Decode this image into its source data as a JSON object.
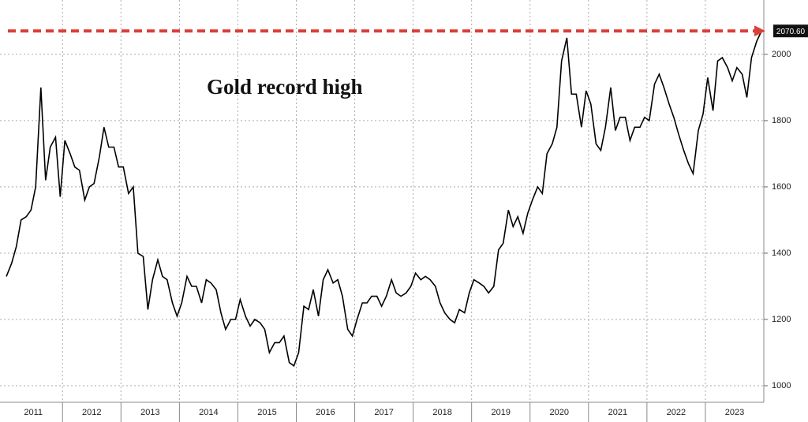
{
  "chart_data": {
    "type": "line",
    "title": "Gold record high",
    "x": [
      2011.04,
      2011.13,
      2011.21,
      2011.29,
      2011.38,
      2011.46,
      2011.54,
      2011.63,
      2011.71,
      2011.79,
      2011.88,
      2011.96,
      2012.04,
      2012.13,
      2012.21,
      2012.29,
      2012.38,
      2012.46,
      2012.54,
      2012.63,
      2012.71,
      2012.79,
      2012.88,
      2012.96,
      2013.04,
      2013.13,
      2013.21,
      2013.29,
      2013.38,
      2013.46,
      2013.54,
      2013.63,
      2013.71,
      2013.79,
      2013.88,
      2013.96,
      2014.04,
      2014.13,
      2014.21,
      2014.29,
      2014.38,
      2014.46,
      2014.54,
      2014.63,
      2014.71,
      2014.79,
      2014.88,
      2014.96,
      2015.04,
      2015.13,
      2015.21,
      2015.29,
      2015.38,
      2015.46,
      2015.54,
      2015.63,
      2015.71,
      2015.79,
      2015.88,
      2015.96,
      2016.04,
      2016.13,
      2016.21,
      2016.29,
      2016.38,
      2016.46,
      2016.54,
      2016.63,
      2016.71,
      2016.79,
      2016.88,
      2016.96,
      2017.04,
      2017.13,
      2017.21,
      2017.29,
      2017.38,
      2017.46,
      2017.54,
      2017.63,
      2017.71,
      2017.79,
      2017.88,
      2017.96,
      2018.04,
      2018.13,
      2018.21,
      2018.29,
      2018.38,
      2018.46,
      2018.54,
      2018.63,
      2018.71,
      2018.79,
      2018.88,
      2018.96,
      2019.04,
      2019.13,
      2019.21,
      2019.29,
      2019.38,
      2019.46,
      2019.54,
      2019.63,
      2019.71,
      2019.79,
      2019.88,
      2019.96,
      2020.04,
      2020.13,
      2020.21,
      2020.29,
      2020.38,
      2020.46,
      2020.54,
      2020.63,
      2020.71,
      2020.79,
      2020.88,
      2020.96,
      2021.04,
      2021.13,
      2021.21,
      2021.29,
      2021.38,
      2021.46,
      2021.54,
      2021.63,
      2021.71,
      2021.79,
      2021.88,
      2021.96,
      2022.04,
      2022.13,
      2022.21,
      2022.29,
      2022.38,
      2022.46,
      2022.54,
      2022.63,
      2022.71,
      2022.79,
      2022.88,
      2022.96,
      2023.04,
      2023.13,
      2023.21,
      2023.29,
      2023.38,
      2023.46,
      2023.54,
      2023.63,
      2023.71,
      2023.79,
      2023.88,
      2023.96
    ],
    "series": [
      {
        "color": "#000000",
        "values": [
          1330,
          1370,
          1420,
          1500,
          1510,
          1530,
          1600,
          1900,
          1620,
          1720,
          1750,
          1570,
          1740,
          1700,
          1660,
          1650,
          1560,
          1600,
          1610,
          1690,
          1780,
          1720,
          1720,
          1660,
          1660,
          1580,
          1600,
          1400,
          1390,
          1230,
          1320,
          1380,
          1330,
          1320,
          1250,
          1210,
          1250,
          1330,
          1300,
          1300,
          1250,
          1320,
          1310,
          1290,
          1220,
          1170,
          1200,
          1200,
          1260,
          1210,
          1180,
          1200,
          1190,
          1170,
          1100,
          1130,
          1130,
          1150,
          1070,
          1060,
          1100,
          1240,
          1230,
          1290,
          1210,
          1320,
          1350,
          1310,
          1320,
          1270,
          1170,
          1150,
          1200,
          1250,
          1250,
          1270,
          1270,
          1240,
          1270,
          1320,
          1280,
          1270,
          1280,
          1300,
          1340,
          1320,
          1330,
          1320,
          1300,
          1250,
          1220,
          1200,
          1190,
          1230,
          1220,
          1280,
          1320,
          1310,
          1300,
          1280,
          1300,
          1410,
          1430,
          1530,
          1480,
          1510,
          1460,
          1520,
          1560,
          1600,
          1580,
          1700,
          1730,
          1780,
          1980,
          2050,
          1880,
          1880,
          1780,
          1890,
          1850,
          1730,
          1710,
          1780,
          1900,
          1770,
          1810,
          1810,
          1740,
          1780,
          1780,
          1810,
          1800,
          1910,
          1940,
          1900,
          1850,
          1810,
          1760,
          1710,
          1670,
          1640,
          1770,
          1820,
          1930,
          1830,
          1980,
          1990,
          1960,
          1920,
          1960,
          1940,
          1870,
          1990,
          2040,
          2070
        ]
      }
    ],
    "xlim": [
      2010.93,
      2024.0
    ],
    "xticks": [
      {
        "value": 2011.5,
        "label": "2011"
      },
      {
        "value": 2012.5,
        "label": "2012"
      },
      {
        "value": 2013.5,
        "label": "2013"
      },
      {
        "value": 2014.5,
        "label": "2014"
      },
      {
        "value": 2015.5,
        "label": "2015"
      },
      {
        "value": 2016.5,
        "label": "2016"
      },
      {
        "value": 2017.5,
        "label": "2017"
      },
      {
        "value": 2018.5,
        "label": "2018"
      },
      {
        "value": 2019.5,
        "label": "2019"
      },
      {
        "value": 2020.5,
        "label": "2020"
      },
      {
        "value": 2021.5,
        "label": "2021"
      },
      {
        "value": 2022.5,
        "label": "2022"
      },
      {
        "value": 2023.5,
        "label": "2023"
      }
    ],
    "xgrid": [
      2012,
      2013,
      2014,
      2015,
      2016,
      2017,
      2018,
      2019,
      2020,
      2021,
      2022,
      2023
    ],
    "ylim": [
      950,
      2164
    ],
    "yticks": [
      1000,
      1200,
      1400,
      1600,
      1800,
      2000
    ],
    "grid": true,
    "record": {
      "value": 2070.6,
      "label": "2070.60",
      "color": "#d9403a"
    }
  }
}
